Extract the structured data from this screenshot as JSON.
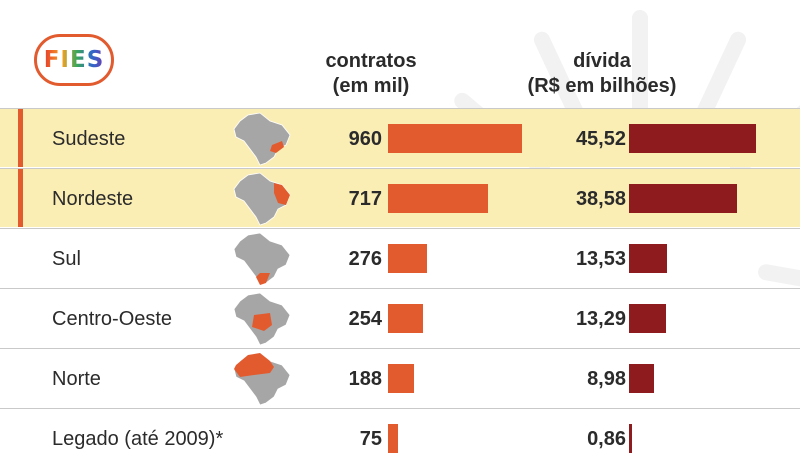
{
  "logo_text": "FIES",
  "headers": {
    "contratos_line1": "contratos",
    "contratos_line2": "(em mil)",
    "divida_line1": "dívida",
    "divida_line2": "(R$ em bilhões)"
  },
  "colors": {
    "contratos_bar": "#e25b2f",
    "divida_bar": "#8e1c1f",
    "highlight_row": "#fbeeb5",
    "map_base": "#a6a6a6",
    "map_region": "#e25b2f"
  },
  "chart_data": {
    "type": "bar",
    "categories": [
      "Sudeste",
      "Nordeste",
      "Sul",
      "Centro-Oeste",
      "Norte",
      "Legado (até 2009)*"
    ],
    "series": [
      {
        "name": "contratos (em mil)",
        "values": [
          960,
          717,
          276,
          254,
          188,
          75
        ],
        "labels": [
          "960",
          "717",
          "276",
          "254",
          "188",
          "75"
        ]
      },
      {
        "name": "dívida (R$ em bilhões)",
        "values": [
          45.52,
          38.58,
          13.53,
          13.29,
          8.98,
          0.86
        ],
        "labels": [
          "45,52",
          "38,58",
          "13,53",
          "13,29",
          "8,98",
          "0,86"
        ]
      }
    ],
    "highlighted": [
      "Sudeste",
      "Nordeste"
    ],
    "map_icons": [
      "southeast-region-map-icon",
      "northeast-region-map-icon",
      "south-region-map-icon",
      "center-west-region-map-icon",
      "north-region-map-icon",
      ""
    ],
    "xlim_contratos": [
      0,
      960
    ],
    "xlim_divida": [
      0,
      45.52
    ]
  }
}
